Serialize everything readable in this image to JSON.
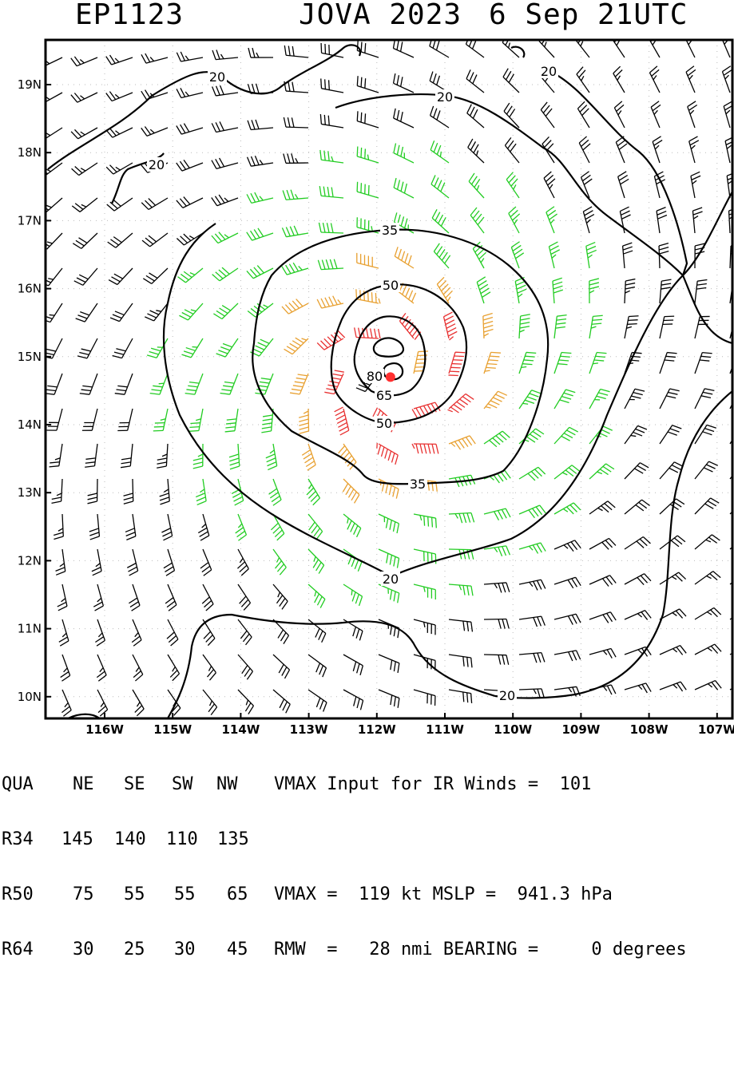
{
  "title": {
    "id": "EP1123",
    "storm": "JOVA 2023",
    "datetime": "6 Sep 21UTC"
  },
  "axes": {
    "lat_labels": [
      "19N",
      "18N",
      "17N",
      "16N",
      "15N",
      "14N",
      "13N",
      "12N",
      "11N",
      "10N"
    ],
    "lat_values": [
      19,
      18,
      17,
      16,
      15,
      14,
      13,
      12,
      11,
      10
    ],
    "lon_labels": [
      "116W",
      "115W",
      "114W",
      "113W",
      "112W",
      "111W",
      "110W",
      "109W",
      "108W",
      "107W"
    ],
    "lon_values": [
      116,
      115,
      114,
      113,
      112,
      111,
      110,
      109,
      108,
      107
    ]
  },
  "contours": {
    "levels": [
      20,
      35,
      50,
      65,
      80
    ],
    "labels": [
      "20",
      "20",
      "20",
      "20",
      "20",
      "20",
      "35",
      "35",
      "50",
      "50",
      "65",
      "80"
    ]
  },
  "storm_center": {
    "lat": 14.7,
    "lon": 111.8,
    "marker_color": "#ff3030"
  },
  "barb_colors": {
    "below_34": "#000000",
    "34_to_50": "#22cc22",
    "50_to_64": "#e8a030",
    "above_64": "#e83030"
  },
  "table": {
    "header": [
      "QUA",
      "NE",
      "SE",
      "SW",
      "NW"
    ],
    "rows": [
      [
        "R34",
        "145",
        "140",
        "110",
        "135"
      ],
      [
        "R50",
        "75",
        "55",
        "55",
        "65"
      ],
      [
        "R64",
        "30",
        "25",
        "30",
        "45"
      ]
    ],
    "line1": "VMAX Input for IR Winds =  101",
    "line3": "VMAX =  119 kt MSLP =  941.3 hPa",
    "line4": "RMW  =   28 nmi BEARING =     0 degrees"
  }
}
